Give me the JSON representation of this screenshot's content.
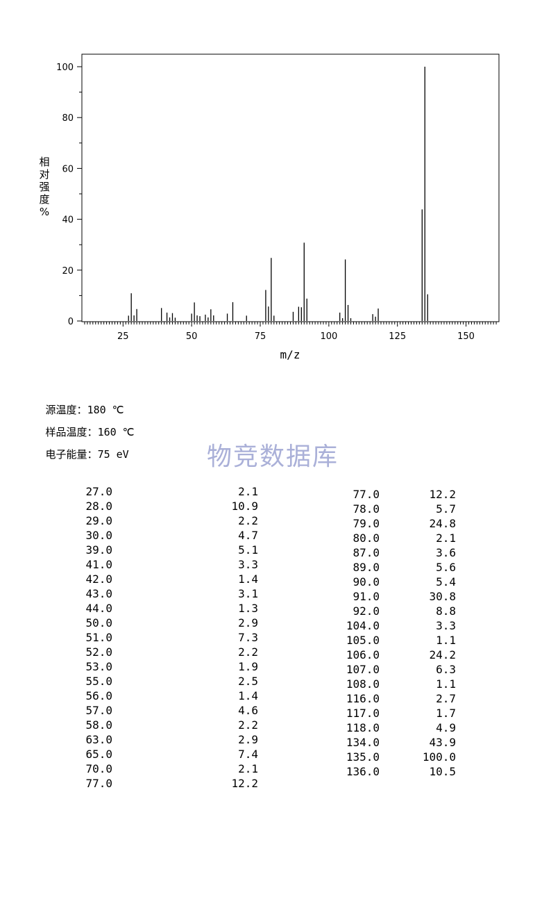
{
  "chart_data": {
    "type": "bar",
    "xlabel": "m/z",
    "ylabel": "相对强度%",
    "xlim": [
      10,
      162
    ],
    "ylim": [
      0,
      105
    ],
    "xticks": [
      25,
      50,
      75,
      100,
      125,
      150
    ],
    "yticks": [
      0,
      20,
      40,
      60,
      80,
      100
    ],
    "peaks": [
      {
        "x": 27,
        "y": 2.1
      },
      {
        "x": 28,
        "y": 10.9
      },
      {
        "x": 29,
        "y": 2.2
      },
      {
        "x": 30,
        "y": 4.7
      },
      {
        "x": 39,
        "y": 5.1
      },
      {
        "x": 41,
        "y": 3.3
      },
      {
        "x": 42,
        "y": 1.4
      },
      {
        "x": 43,
        "y": 3.1
      },
      {
        "x": 44,
        "y": 1.3
      },
      {
        "x": 50,
        "y": 2.9
      },
      {
        "x": 51,
        "y": 7.3
      },
      {
        "x": 52,
        "y": 2.2
      },
      {
        "x": 53,
        "y": 1.9
      },
      {
        "x": 55,
        "y": 2.5
      },
      {
        "x": 56,
        "y": 1.4
      },
      {
        "x": 57,
        "y": 4.6
      },
      {
        "x": 58,
        "y": 2.2
      },
      {
        "x": 63,
        "y": 2.9
      },
      {
        "x": 65,
        "y": 7.4
      },
      {
        "x": 70,
        "y": 2.1
      },
      {
        "x": 77,
        "y": 12.2
      },
      {
        "x": 78,
        "y": 5.7
      },
      {
        "x": 79,
        "y": 24.8
      },
      {
        "x": 80,
        "y": 2.1
      },
      {
        "x": 87,
        "y": 3.6
      },
      {
        "x": 89,
        "y": 5.6
      },
      {
        "x": 90,
        "y": 5.4
      },
      {
        "x": 91,
        "y": 30.8
      },
      {
        "x": 92,
        "y": 8.8
      },
      {
        "x": 104,
        "y": 3.3
      },
      {
        "x": 105,
        "y": 1.1
      },
      {
        "x": 106,
        "y": 24.2
      },
      {
        "x": 107,
        "y": 6.3
      },
      {
        "x": 108,
        "y": 1.1
      },
      {
        "x": 116,
        "y": 2.7
      },
      {
        "x": 117,
        "y": 1.7
      },
      {
        "x": 118,
        "y": 4.9
      },
      {
        "x": 134,
        "y": 43.9
      },
      {
        "x": 135,
        "y": 100.0
      },
      {
        "x": 136,
        "y": 10.5
      }
    ]
  },
  "conditions": {
    "source_temp_label": "源温度：",
    "source_temp_value": "180 ℃",
    "sample_temp_label": "样品温度：",
    "sample_temp_value": "160 ℃",
    "electron_energy_label": "电子能量：",
    "electron_energy_value": "75 eV"
  },
  "watermark": "物竞数据库",
  "table_left": [
    [
      "27.0",
      "2.1"
    ],
    [
      "28.0",
      "10.9"
    ],
    [
      "29.0",
      "2.2"
    ],
    [
      "30.0",
      "4.7"
    ],
    [
      "39.0",
      "5.1"
    ],
    [
      "41.0",
      "3.3"
    ],
    [
      "42.0",
      "1.4"
    ],
    [
      "43.0",
      "3.1"
    ],
    [
      "44.0",
      "1.3"
    ],
    [
      "50.0",
      "2.9"
    ],
    [
      "51.0",
      "7.3"
    ],
    [
      "52.0",
      "2.2"
    ],
    [
      "53.0",
      "1.9"
    ],
    [
      "55.0",
      "2.5"
    ],
    [
      "56.0",
      "1.4"
    ],
    [
      "57.0",
      "4.6"
    ],
    [
      "58.0",
      "2.2"
    ],
    [
      "63.0",
      "2.9"
    ],
    [
      "65.0",
      "7.4"
    ],
    [
      "70.0",
      "2.1"
    ],
    [
      "77.0",
      "12.2"
    ]
  ],
  "table_right": [
    [
      "77.0",
      "12.2"
    ],
    [
      "78.0",
      "5.7"
    ],
    [
      "79.0",
      "24.8"
    ],
    [
      "80.0",
      "2.1"
    ],
    [
      "87.0",
      "3.6"
    ],
    [
      "89.0",
      "5.6"
    ],
    [
      "90.0",
      "5.4"
    ],
    [
      "91.0",
      "30.8"
    ],
    [
      "92.0",
      "8.8"
    ],
    [
      "104.0",
      "3.3"
    ],
    [
      "105.0",
      "1.1"
    ],
    [
      "106.0",
      "24.2"
    ],
    [
      "107.0",
      "6.3"
    ],
    [
      "108.0",
      "1.1"
    ],
    [
      "116.0",
      "2.7"
    ],
    [
      "117.0",
      "1.7"
    ],
    [
      "118.0",
      "4.9"
    ],
    [
      "134.0",
      "43.9"
    ],
    [
      "135.0",
      "100.0"
    ],
    [
      "136.0",
      "10.5"
    ]
  ]
}
